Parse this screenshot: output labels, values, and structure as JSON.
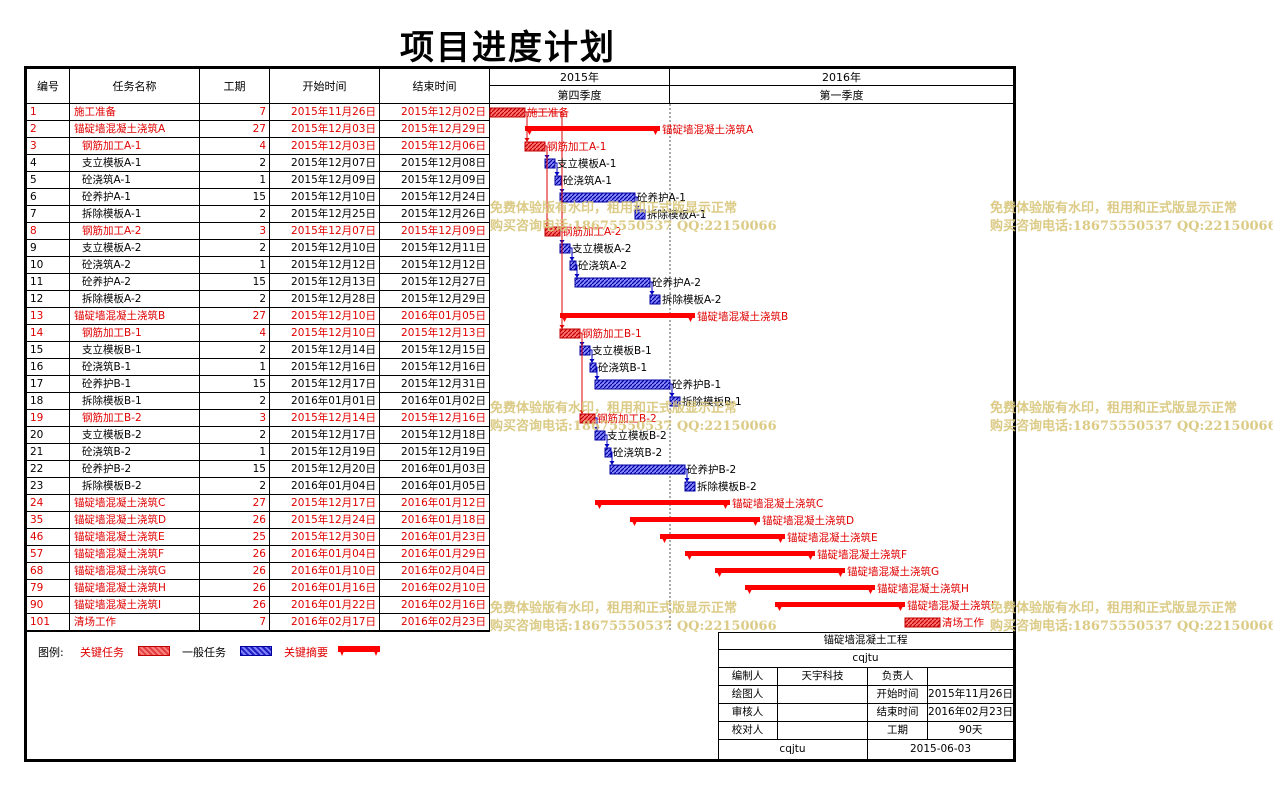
{
  "title": "项目进度计划",
  "columns": {
    "id": "编号",
    "name": "任务名称",
    "duration": "工期",
    "start": "开始时间",
    "end": "结束时间"
  },
  "timescale": {
    "years": [
      {
        "label": "2015年"
      },
      {
        "label": "2016年"
      }
    ],
    "quarters": [
      {
        "label": "第四季度"
      },
      {
        "label": "第一季度"
      }
    ]
  },
  "tasks": [
    {
      "id": "1",
      "name": "施工准备",
      "dur": "7",
      "start": "2015年11月26日",
      "end": "2015年12月02日",
      "kind": "critical",
      "indent": 0,
      "s": 0,
      "d": 7
    },
    {
      "id": "2",
      "name": "锚碇墙混凝土浇筑A",
      "dur": "27",
      "start": "2015年12月03日",
      "end": "2015年12月29日",
      "kind": "summary",
      "indent": 0,
      "s": 7,
      "d": 27
    },
    {
      "id": "3",
      "name": "钢筋加工A-1",
      "dur": "4",
      "start": "2015年12月03日",
      "end": "2015年12月06日",
      "kind": "critical",
      "indent": 1,
      "s": 7,
      "d": 4
    },
    {
      "id": "4",
      "name": "支立模板A-1",
      "dur": "2",
      "start": "2015年12月07日",
      "end": "2015年12月08日",
      "kind": "normal",
      "indent": 1,
      "s": 11,
      "d": 2
    },
    {
      "id": "5",
      "name": "砼浇筑A-1",
      "dur": "1",
      "start": "2015年12月09日",
      "end": "2015年12月09日",
      "kind": "normal",
      "indent": 1,
      "s": 13,
      "d": 1
    },
    {
      "id": "6",
      "name": "砼养护A-1",
      "dur": "15",
      "start": "2015年12月10日",
      "end": "2015年12月24日",
      "kind": "normal",
      "indent": 1,
      "s": 14,
      "d": 15
    },
    {
      "id": "7",
      "name": "拆除模板A-1",
      "dur": "2",
      "start": "2015年12月25日",
      "end": "2015年12月26日",
      "kind": "normal",
      "indent": 1,
      "s": 29,
      "d": 2
    },
    {
      "id": "8",
      "name": "钢筋加工A-2",
      "dur": "3",
      "start": "2015年12月07日",
      "end": "2015年12月09日",
      "kind": "critical",
      "indent": 1,
      "s": 11,
      "d": 3
    },
    {
      "id": "9",
      "name": "支立模板A-2",
      "dur": "2",
      "start": "2015年12月10日",
      "end": "2015年12月11日",
      "kind": "normal",
      "indent": 1,
      "s": 14,
      "d": 2
    },
    {
      "id": "10",
      "name": "砼浇筑A-2",
      "dur": "1",
      "start": "2015年12月12日",
      "end": "2015年12月12日",
      "kind": "normal",
      "indent": 1,
      "s": 16,
      "d": 1
    },
    {
      "id": "11",
      "name": "砼养护A-2",
      "dur": "15",
      "start": "2015年12月13日",
      "end": "2015年12月27日",
      "kind": "normal",
      "indent": 1,
      "s": 17,
      "d": 15
    },
    {
      "id": "12",
      "name": "拆除模板A-2",
      "dur": "2",
      "start": "2015年12月28日",
      "end": "2015年12月29日",
      "kind": "normal",
      "indent": 1,
      "s": 32,
      "d": 2
    },
    {
      "id": "13",
      "name": "锚碇墙混凝土浇筑B",
      "dur": "27",
      "start": "2015年12月10日",
      "end": "2016年01月05日",
      "kind": "summary",
      "indent": 0,
      "s": 14,
      "d": 27
    },
    {
      "id": "14",
      "name": "钢筋加工B-1",
      "dur": "4",
      "start": "2015年12月10日",
      "end": "2015年12月13日",
      "kind": "critical",
      "indent": 1,
      "s": 14,
      "d": 4
    },
    {
      "id": "15",
      "name": "支立模板B-1",
      "dur": "2",
      "start": "2015年12月14日",
      "end": "2015年12月15日",
      "kind": "normal",
      "indent": 1,
      "s": 18,
      "d": 2
    },
    {
      "id": "16",
      "name": "砼浇筑B-1",
      "dur": "1",
      "start": "2015年12月16日",
      "end": "2015年12月16日",
      "kind": "normal",
      "indent": 1,
      "s": 20,
      "d": 1
    },
    {
      "id": "17",
      "name": "砼养护B-1",
      "dur": "15",
      "start": "2015年12月17日",
      "end": "2015年12月31日",
      "kind": "normal",
      "indent": 1,
      "s": 21,
      "d": 15
    },
    {
      "id": "18",
      "name": "拆除模板B-1",
      "dur": "2",
      "start": "2016年01月01日",
      "end": "2016年01月02日",
      "kind": "normal",
      "indent": 1,
      "s": 36,
      "d": 2
    },
    {
      "id": "19",
      "name": "钢筋加工B-2",
      "dur": "3",
      "start": "2015年12月14日",
      "end": "2015年12月16日",
      "kind": "critical",
      "indent": 1,
      "s": 18,
      "d": 3
    },
    {
      "id": "20",
      "name": "支立模板B-2",
      "dur": "2",
      "start": "2015年12月17日",
      "end": "2015年12月18日",
      "kind": "normal",
      "indent": 1,
      "s": 21,
      "d": 2
    },
    {
      "id": "21",
      "name": "砼浇筑B-2",
      "dur": "1",
      "start": "2015年12月19日",
      "end": "2015年12月19日",
      "kind": "normal",
      "indent": 1,
      "s": 23,
      "d": 1
    },
    {
      "id": "22",
      "name": "砼养护B-2",
      "dur": "15",
      "start": "2015年12月20日",
      "end": "2016年01月03日",
      "kind": "normal",
      "indent": 1,
      "s": 24,
      "d": 15
    },
    {
      "id": "23",
      "name": "拆除模板B-2",
      "dur": "2",
      "start": "2016年01月04日",
      "end": "2016年01月05日",
      "kind": "normal",
      "indent": 1,
      "s": 39,
      "d": 2
    },
    {
      "id": "24",
      "name": "锚碇墙混凝土浇筑C",
      "dur": "27",
      "start": "2015年12月17日",
      "end": "2016年01月12日",
      "kind": "summary",
      "indent": 0,
      "s": 21,
      "d": 27
    },
    {
      "id": "35",
      "name": "锚碇墙混凝土浇筑D",
      "dur": "26",
      "start": "2015年12月24日",
      "end": "2016年01月18日",
      "kind": "summary",
      "indent": 0,
      "s": 28,
      "d": 26
    },
    {
      "id": "46",
      "name": "锚碇墙混凝土浇筑E",
      "dur": "25",
      "start": "2015年12月30日",
      "end": "2016年01月23日",
      "kind": "summary",
      "indent": 0,
      "s": 34,
      "d": 25
    },
    {
      "id": "57",
      "name": "锚碇墙混凝土浇筑F",
      "dur": "26",
      "start": "2016年01月04日",
      "end": "2016年01月29日",
      "kind": "summary",
      "indent": 0,
      "s": 39,
      "d": 26
    },
    {
      "id": "68",
      "name": "锚碇墙混凝土浇筑G",
      "dur": "26",
      "start": "2016年01月10日",
      "end": "2016年02月04日",
      "kind": "summary",
      "indent": 0,
      "s": 45,
      "d": 26
    },
    {
      "id": "79",
      "name": "锚碇墙混凝土浇筑H",
      "dur": "26",
      "start": "2016年01月16日",
      "end": "2016年02月10日",
      "kind": "summary",
      "indent": 0,
      "s": 51,
      "d": 26
    },
    {
      "id": "90",
      "name": "锚碇墙混凝土浇筑I",
      "dur": "26",
      "start": "2016年01月22日",
      "end": "2016年02月16日",
      "kind": "summary",
      "indent": 0,
      "s": 57,
      "d": 26
    },
    {
      "id": "101",
      "name": "清场工作",
      "dur": "7",
      "start": "2016年02月17日",
      "end": "2016年02月23日",
      "kind": "critical",
      "indent": 0,
      "s": 83,
      "d": 7
    }
  ],
  "legend": {
    "label": "图例:",
    "critical": "关键任务",
    "normal": "一般任务",
    "summary": "关键摘要"
  },
  "watermark": {
    "line1": "免费体验版有水印，租用和正式版显示正常",
    "line2": "购买咨询电话:18675550537 QQ:22150066"
  },
  "title_block": {
    "project": "锚碇墙混凝土工程",
    "sub": "cqjtu",
    "editor_label": "编制人",
    "editor": "天宇科技",
    "lead_label": "负责人",
    "lead": "",
    "drawer_label": "绘图人",
    "drawer": "",
    "start_label": "开始时间",
    "start": "2015年11月26日",
    "reviewer_label": "审核人",
    "reviewer": "",
    "end_label": "结束时间",
    "end": "2016年02月23日",
    "checker_label": "校对人",
    "checker": "",
    "dur_label": "工期",
    "dur": "90天",
    "footer_left": "cqjtu",
    "footer_right": "2015-06-03"
  },
  "colors": {
    "critical": "#e00000",
    "normal": "#0000c0",
    "summary": "#ff0000"
  }
}
